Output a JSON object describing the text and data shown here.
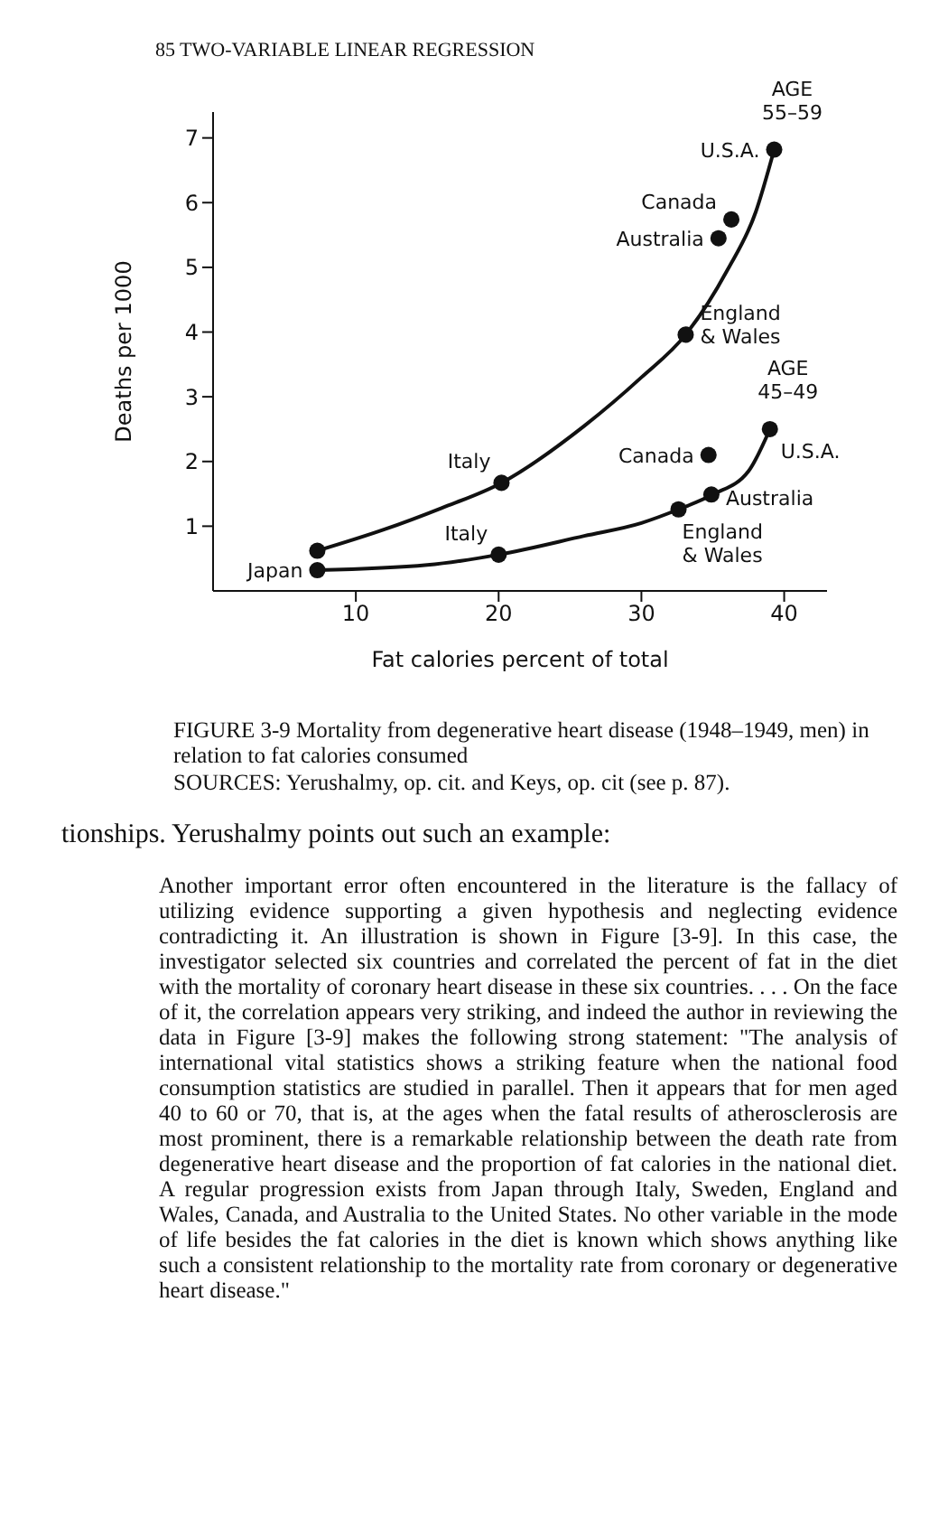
{
  "chart_data": {
    "type": "scatter",
    "xlabel": "Fat calories percent of total",
    "ylabel": "Deaths per 1000",
    "xlim": [
      0,
      43
    ],
    "xticks": [
      10,
      20,
      30,
      40
    ],
    "ylim": [
      0,
      7.4
    ],
    "yticks": [
      1,
      2,
      3,
      4,
      5,
      6,
      7
    ],
    "grid": false,
    "marker": "circle",
    "line_style": "solid",
    "series": [
      {
        "name": "AGE 55–59",
        "color": "#111111",
        "x": [
          7.3,
          20.2,
          33.1,
          35.4,
          36.3,
          39.3
        ],
        "values": [
          0.62,
          1.67,
          3.96,
          5.45,
          5.74,
          6.82
        ]
      },
      {
        "type": "line",
        "marker": "none",
        "color": "#111111",
        "x": [
          7.3,
          12,
          16,
          20.2,
          26,
          30,
          33.1,
          36,
          38,
          39.3
        ],
        "values": [
          0.62,
          0.95,
          1.28,
          1.67,
          2.55,
          3.3,
          3.96,
          4.95,
          5.85,
          6.82
        ]
      },
      {
        "name": "AGE 45–49",
        "color": "#111111",
        "x": [
          7.3,
          20,
          32.6,
          34.9,
          34.7,
          39
        ],
        "values": [
          0.32,
          0.56,
          1.26,
          1.49,
          2.1,
          2.5
        ]
      },
      {
        "type": "line",
        "marker": "none",
        "color": "#111111",
        "x": [
          7.3,
          15,
          20,
          26,
          30,
          32.6,
          35,
          37.5,
          39
        ],
        "values": [
          0.32,
          0.4,
          0.56,
          0.85,
          1.05,
          1.26,
          1.49,
          1.85,
          2.5
        ]
      }
    ],
    "annotations": [
      "85 TWO-VARIABLE LINEAR REGRESSION",
      {
        "text": "Japan",
        "x": 7.3,
        "y": 0.32
      },
      {
        "text": "Italy",
        "x": 20.2,
        "y": 1.67
      },
      {
        "text": "England\n& Wales",
        "x": 33.1,
        "y": 3.96
      },
      {
        "text": "Australia",
        "x": 35.4,
        "y": 5.45
      },
      {
        "text": "Canada",
        "x": 36.3,
        "y": 5.74
      },
      {
        "text": "U.S.A.",
        "x": 39.3,
        "y": 6.82
      },
      {
        "text": "Italy",
        "x": 20,
        "y": 0.56
      },
      {
        "text": "England\n& Wales",
        "x": 32.6,
        "y": 1.26
      },
      {
        "text": "Australia",
        "x": 34.9,
        "y": 1.49
      },
      {
        "text": "Canada",
        "x": 34.7,
        "y": 2.1
      },
      {
        "text": "U.S.A.",
        "x": 39,
        "y": 2.5
      },
      "FIGURE 3-9 Mortality from degenerative heart disease (1948–1949, men) in relation to fat calories consumed",
      "SOURCES: Yerushalmy, op. cit. and Keys, op. cit (see p. 87).",
      "tionships. Yerushalmy points out such an example:",
      "Another important error often encountered in the literature is the fallacy of utilizing evidence supporting a given hypothesis and neglecting evidence contradicting it. An illustration is shown in Figure [3-9]. In this case, the investigator selected six countries and correlated the percent of fat in the diet with the mortality of coronary heart disease in these six countries. . . . On the face of it, the correlation appears very striking, and indeed the author in reviewing the data in Figure [3-9] makes the following strong statement: \"The analysis of international vital statistics shows a striking feature when the national food consumption statistics are studied in parallel. Then it appears that for men aged 40 to 60 or 70, that is, at the ages when the fatal results of atherosclerosis are most prominent, there is a remarkable relationship between the death rate from degenerative heart disease and the proportion of fat calories in the national diet. A regular progression exists from Japan through Italy, Sweden, England and Wales, Canada, and Australia to the United States. No other variable in the mode of life besides the fat calories in the diet is known which shows anything like such a consistent relationship to the mortality rate from coronary or degenerative heart disease.\""
    ]
  }
}
